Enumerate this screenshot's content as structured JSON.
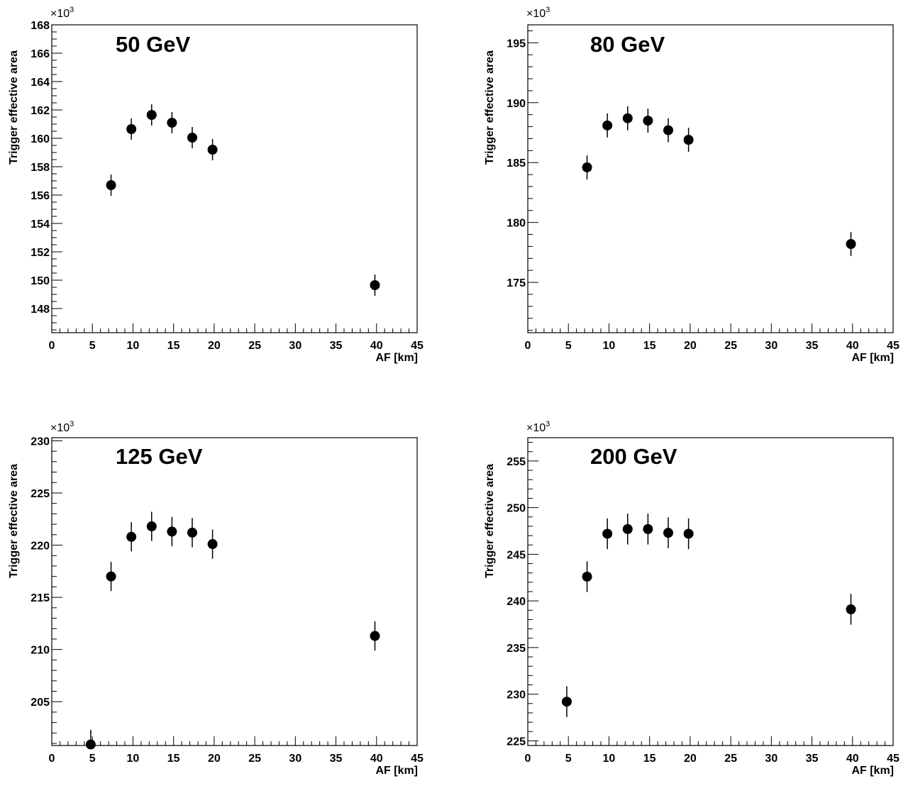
{
  "chart_data": [
    {
      "type": "scatter",
      "title": "50 GeV",
      "xlabel": "AF [km]",
      "ylabel": "Trigger effective area",
      "y_multiplier": "×10",
      "y_multiplier_exp": "3",
      "xlim": [
        0,
        45
      ],
      "ylim": [
        146.3,
        168
      ],
      "xticks": [
        0,
        5,
        10,
        15,
        20,
        25,
        30,
        35,
        40,
        45
      ],
      "yticks": [
        148,
        150,
        152,
        154,
        156,
        158,
        160,
        162,
        164,
        166,
        168
      ],
      "minor_x_step": 1,
      "minor_y_step": 0.5,
      "points": [
        {
          "x": 7.3,
          "y": 156.7,
          "err": 0.75
        },
        {
          "x": 9.8,
          "y": 160.65,
          "err": 0.75
        },
        {
          "x": 12.3,
          "y": 161.65,
          "err": 0.75
        },
        {
          "x": 14.8,
          "y": 161.1,
          "err": 0.75
        },
        {
          "x": 17.3,
          "y": 160.05,
          "err": 0.75
        },
        {
          "x": 19.8,
          "y": 159.2,
          "err": 0.75
        },
        {
          "x": 39.8,
          "y": 149.65,
          "err": 0.75
        }
      ]
    },
    {
      "type": "scatter",
      "title": "80 GeV",
      "xlabel": "AF [km]",
      "ylabel": "Trigger effective area",
      "y_multiplier": "×10",
      "y_multiplier_exp": "3",
      "xlim": [
        0,
        45
      ],
      "ylim": [
        170.8,
        196.5
      ],
      "xticks": [
        0,
        5,
        10,
        15,
        20,
        25,
        30,
        35,
        40,
        45
      ],
      "yticks": [
        175,
        180,
        185,
        190,
        195
      ],
      "minor_x_step": 1,
      "minor_y_step": 1,
      "points": [
        {
          "x": 7.3,
          "y": 184.6,
          "err": 1.0
        },
        {
          "x": 9.8,
          "y": 188.1,
          "err": 1.0
        },
        {
          "x": 12.3,
          "y": 188.7,
          "err": 1.0
        },
        {
          "x": 14.8,
          "y": 188.5,
          "err": 1.0
        },
        {
          "x": 17.3,
          "y": 187.7,
          "err": 1.0
        },
        {
          "x": 19.8,
          "y": 186.9,
          "err": 1.0
        },
        {
          "x": 39.8,
          "y": 178.2,
          "err": 1.0
        }
      ]
    },
    {
      "type": "scatter",
      "title": "125 GeV",
      "xlabel": "AF [km]",
      "ylabel": "Trigger effective area",
      "y_multiplier": "×10",
      "y_multiplier_exp": "3",
      "xlim": [
        0,
        45
      ],
      "ylim": [
        200.8,
        230.3
      ],
      "xticks": [
        0,
        5,
        10,
        15,
        20,
        25,
        30,
        35,
        40,
        45
      ],
      "yticks": [
        205,
        210,
        215,
        220,
        225,
        230
      ],
      "minor_x_step": 1,
      "minor_y_step": 1,
      "points": [
        {
          "x": 4.8,
          "y": 200.9,
          "err": 1.4
        },
        {
          "x": 7.3,
          "y": 217.0,
          "err": 1.4
        },
        {
          "x": 9.8,
          "y": 220.8,
          "err": 1.4
        },
        {
          "x": 12.3,
          "y": 221.8,
          "err": 1.4
        },
        {
          "x": 14.8,
          "y": 221.3,
          "err": 1.4
        },
        {
          "x": 17.3,
          "y": 221.2,
          "err": 1.4
        },
        {
          "x": 19.8,
          "y": 220.1,
          "err": 1.4
        },
        {
          "x": 39.8,
          "y": 211.3,
          "err": 1.4
        }
      ]
    },
    {
      "type": "scatter",
      "title": "200 GeV",
      "xlabel": "AF [km]",
      "ylabel": "Trigger effective area",
      "y_multiplier": "×10",
      "y_multiplier_exp": "3",
      "xlim": [
        0,
        45
      ],
      "ylim": [
        224.5,
        257.5
      ],
      "xticks": [
        0,
        5,
        10,
        15,
        20,
        25,
        30,
        35,
        40,
        45
      ],
      "yticks": [
        225,
        230,
        235,
        240,
        245,
        250,
        255
      ],
      "minor_x_step": 1,
      "minor_y_step": 1,
      "points": [
        {
          "x": 4.8,
          "y": 229.2,
          "err": 1.65
        },
        {
          "x": 7.3,
          "y": 242.6,
          "err": 1.65
        },
        {
          "x": 9.8,
          "y": 247.2,
          "err": 1.65
        },
        {
          "x": 12.3,
          "y": 247.7,
          "err": 1.65
        },
        {
          "x": 14.8,
          "y": 247.7,
          "err": 1.65
        },
        {
          "x": 17.3,
          "y": 247.3,
          "err": 1.65
        },
        {
          "x": 19.8,
          "y": 247.2,
          "err": 1.65
        },
        {
          "x": 39.8,
          "y": 239.1,
          "err": 1.65
        }
      ]
    }
  ]
}
